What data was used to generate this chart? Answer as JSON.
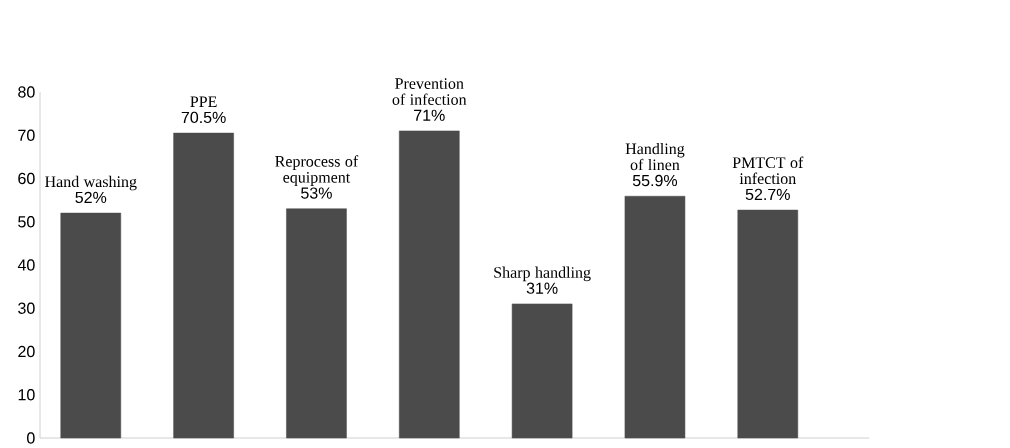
{
  "chart_data": {
    "type": "bar",
    "categories": [
      "Hand washing",
      "PPE",
      "Reprocess of equipment",
      "Prevention of infection",
      "Sharp handling",
      "Handling of linen",
      "PMTCT of infection"
    ],
    "values": [
      52,
      70.5,
      53,
      71,
      31,
      55.9,
      52.7
    ],
    "value_labels": [
      "52%",
      "70.5%",
      "53%",
      "71%",
      "31%",
      "55.9%",
      "52.7%"
    ],
    "color": "#4b4b4b",
    "ylim": [
      0,
      80
    ],
    "yticks": [
      0,
      10,
      20,
      30,
      40,
      50,
      60,
      70,
      80
    ]
  }
}
